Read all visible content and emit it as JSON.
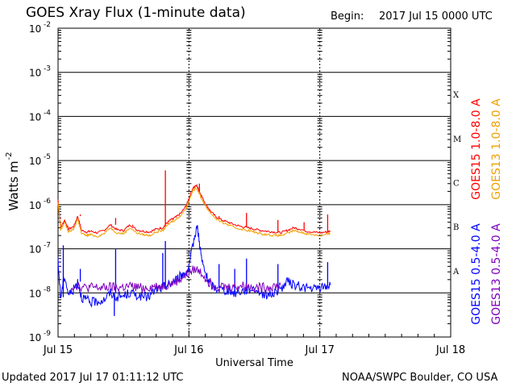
{
  "chart_data": {
    "type": "line",
    "title": "GOES Xray Flux (1-minute data)",
    "begin_label": "Begin:",
    "begin_value": "2017 Jul 15 0000 UTC",
    "ylabel": "Watts m",
    "ylabel_exponent": "-2",
    "xlabel": "Universal Time",
    "yscale": "log",
    "ylim_exponents": [
      -9,
      -2
    ],
    "y_tick_exponents": [
      -9,
      -8,
      -7,
      -6,
      -5,
      -4,
      -3,
      -2
    ],
    "y_tick_base": "10",
    "xlim_days": [
      0,
      3
    ],
    "x_ticks": [
      {
        "day": 0,
        "label": "Jul 15"
      },
      {
        "day": 1,
        "label": "Jul 16"
      },
      {
        "day": 2,
        "label": "Jul 17"
      },
      {
        "day": 3,
        "label": "Jul 18"
      }
    ],
    "flare_classes": [
      {
        "label": "A",
        "exp": -8
      },
      {
        "label": "B",
        "exp": -7
      },
      {
        "label": "C",
        "exp": -6
      },
      {
        "label": "M",
        "exp": -5
      },
      {
        "label": "X",
        "exp": -4
      }
    ],
    "series": [
      {
        "name": "GOES15 1.0-8.0 A",
        "color": "#ff0000",
        "x": [
          0.0,
          0.02,
          0.05,
          0.08,
          0.12,
          0.15,
          0.18,
          0.22,
          0.25,
          0.3,
          0.35,
          0.4,
          0.45,
          0.5,
          0.55,
          0.6,
          0.65,
          0.7,
          0.75,
          0.8,
          0.83,
          0.86,
          0.9,
          0.94,
          0.98,
          1.0,
          1.03,
          1.06,
          1.08,
          1.1,
          1.13,
          1.16,
          1.2,
          1.25,
          1.3,
          1.35,
          1.4,
          1.45,
          1.5,
          1.55,
          1.6,
          1.65,
          1.7,
          1.75,
          1.8,
          1.85,
          1.9,
          1.95,
          2.0,
          2.05,
          2.08
        ],
        "y": [
          1.3e-06,
          3e-07,
          4.5e-07,
          2.8e-07,
          3.2e-07,
          5.5e-07,
          2.6e-07,
          2.4e-07,
          2.5e-07,
          2.3e-07,
          2.6e-07,
          3.5e-07,
          2.7e-07,
          2.6e-07,
          3.5e-07,
          2.7e-07,
          2.5e-07,
          2.4e-07,
          2.8e-07,
          3e-07,
          3.8e-07,
          4.5e-07,
          5.2e-07,
          6.5e-07,
          9.5e-07,
          1.4e-06,
          2.4e-06,
          2.7e-06,
          2e-06,
          1.5e-06,
          1e-06,
          7.5e-07,
          5.5e-07,
          4.5e-07,
          4e-07,
          3.5e-07,
          3.2e-07,
          3e-07,
          2.8e-07,
          2.6e-07,
          2.5e-07,
          2.4e-07,
          2.3e-07,
          2.6e-07,
          3e-07,
          2.8e-07,
          2.5e-07,
          2.4e-07,
          2.3e-07,
          2.4e-07,
          2.5e-07
        ],
        "spikes": [
          {
            "x": 0.17,
            "y": 6e-07
          },
          {
            "x": 0.44,
            "y": 5e-07
          },
          {
            "x": 0.57,
            "y": 3.2e-07
          },
          {
            "x": 0.82,
            "y": 6e-06
          },
          {
            "x": 0.88,
            "y": 5e-07
          },
          {
            "x": 1.08,
            "y": 3e-06
          },
          {
            "x": 1.23,
            "y": 5e-07
          },
          {
            "x": 1.44,
            "y": 6.5e-07
          },
          {
            "x": 1.68,
            "y": 4.5e-07
          },
          {
            "x": 1.88,
            "y": 4e-07
          },
          {
            "x": 2.06,
            "y": 6e-07
          }
        ]
      },
      {
        "name": "GOES13 1.0-8.0 A",
        "color": "#f0a000",
        "x": [
          0.0,
          0.02,
          0.05,
          0.08,
          0.12,
          0.15,
          0.18,
          0.22,
          0.25,
          0.3,
          0.35,
          0.4,
          0.45,
          0.5,
          0.55,
          0.6,
          0.65,
          0.7,
          0.75,
          0.8,
          0.83,
          0.86,
          0.9,
          0.94,
          0.98,
          1.0,
          1.03,
          1.06,
          1.08,
          1.1,
          1.13,
          1.16,
          1.2,
          1.25,
          1.3,
          1.35,
          1.4,
          1.45,
          1.5,
          1.55,
          1.6,
          1.65,
          1.7,
          1.75,
          1.8,
          1.85,
          1.9,
          1.95,
          2.0,
          2.05,
          2.08
        ],
        "y": [
          1.1e-06,
          2.6e-07,
          4e-07,
          2.4e-07,
          2.8e-07,
          4.8e-07,
          2.2e-07,
          2e-07,
          2.1e-07,
          1.9e-07,
          2.2e-07,
          3e-07,
          2.3e-07,
          2.2e-07,
          3e-07,
          2.3e-07,
          2.1e-07,
          2e-07,
          2.4e-07,
          2.6e-07,
          3.3e-07,
          4e-07,
          4.6e-07,
          5.8e-07,
          8.5e-07,
          1.2e-06,
          2.1e-06,
          2.4e-06,
          1.8e-06,
          1.3e-06,
          9e-07,
          6.8e-07,
          5e-07,
          4e-07,
          3.5e-07,
          3e-07,
          2.8e-07,
          2.6e-07,
          2.4e-07,
          2.2e-07,
          2.1e-07,
          2e-07,
          2e-07,
          2.2e-07,
          2.6e-07,
          2.4e-07,
          2.2e-07,
          2.1e-07,
          2e-07,
          2.1e-07,
          2.2e-07
        ],
        "spikes": []
      },
      {
        "name": "GOES15 0.5-4.0 A",
        "color": "#0000ff",
        "x": [
          0.0,
          0.02,
          0.05,
          0.08,
          0.12,
          0.15,
          0.18,
          0.22,
          0.25,
          0.3,
          0.35,
          0.4,
          0.45,
          0.5,
          0.55,
          0.6,
          0.65,
          0.7,
          0.75,
          0.8,
          0.83,
          0.86,
          0.9,
          0.94,
          0.98,
          1.0,
          1.03,
          1.06,
          1.08,
          1.1,
          1.13,
          1.16,
          1.2,
          1.25,
          1.3,
          1.35,
          1.4,
          1.45,
          1.5,
          1.55,
          1.6,
          1.65,
          1.7,
          1.75,
          1.8,
          1.85,
          1.9,
          1.95,
          2.0,
          2.05,
          2.08
        ],
        "y": [
          5e-08,
          8e-09,
          2.5e-08,
          9e-09,
          1.2e-08,
          1.8e-08,
          8e-09,
          7e-09,
          6e-09,
          6.5e-09,
          7e-09,
          1e-08,
          8e-09,
          8.5e-09,
          1e-08,
          9e-09,
          8e-09,
          8.5e-09,
          1.2e-08,
          1.3e-08,
          1.5e-08,
          1.6e-08,
          2e-08,
          2.5e-08,
          3e-08,
          3.5e-08,
          1.2e-07,
          3.5e-07,
          1.5e-07,
          5e-08,
          2.5e-08,
          1.6e-08,
          1.3e-08,
          1.2e-08,
          1.1e-08,
          1e-08,
          1.1e-08,
          1.2e-08,
          1.3e-08,
          1e-08,
          9e-09,
          1e-08,
          1.2e-08,
          1.8e-08,
          1.5e-08,
          1.4e-08,
          1.3e-08,
          1.2e-08,
          1.3e-08,
          1.4e-08,
          1.5e-08
        ],
        "spikes": [
          {
            "x": 0.04,
            "y": 1.2e-07
          },
          {
            "x": 0.17,
            "y": 3.5e-08
          },
          {
            "x": 0.44,
            "y": 1e-07
          },
          {
            "x": 0.43,
            "y": 3e-09
          },
          {
            "x": 0.8,
            "y": 8e-08
          },
          {
            "x": 0.82,
            "y": 1.5e-07
          },
          {
            "x": 1.23,
            "y": 4.5e-08
          },
          {
            "x": 1.35,
            "y": 3.5e-08
          },
          {
            "x": 1.44,
            "y": 6e-08
          },
          {
            "x": 1.68,
            "y": 4.5e-08
          },
          {
            "x": 2.06,
            "y": 5e-08
          }
        ]
      },
      {
        "name": "GOES13 0.5-4.0 A",
        "color": "#7f00bf",
        "x": [
          0.1,
          0.15,
          0.2,
          0.25,
          0.3,
          0.35,
          0.4,
          0.45,
          0.5,
          0.55,
          0.6,
          0.65,
          0.7,
          0.75,
          0.8,
          0.85,
          0.9,
          0.95,
          1.0,
          1.05,
          1.1,
          1.15,
          1.2,
          1.25,
          1.3,
          1.35,
          1.4,
          1.45,
          1.5,
          1.55,
          1.6,
          1.65,
          1.7
        ],
        "y": [
          1.4e-08,
          1.5e-08,
          1.3e-08,
          1.35e-08,
          1.3e-08,
          1.3e-08,
          1.35e-08,
          1.3e-08,
          1.35e-08,
          1.4e-08,
          1.35e-08,
          1.3e-08,
          1.35e-08,
          1.4e-08,
          1.45e-08,
          1.6e-08,
          1.8e-08,
          2.2e-08,
          2.8e-08,
          3.5e-08,
          2.8e-08,
          1.8e-08,
          1.5e-08,
          1.4e-08,
          1.35e-08,
          1.4e-08,
          1.45e-08,
          1.4e-08,
          1.35e-08,
          1.3e-08,
          1.35e-08,
          1.4e-08,
          1.5e-08
        ],
        "spikes": []
      }
    ],
    "legend_right": [
      {
        "text": "GOES15 1.0-8.0 A",
        "color": "#ff0000"
      },
      {
        "text": "GOES13 1.0-8.0 A",
        "color": "#f0a000"
      },
      {
        "text": "GOES15 0.5-4.0 A",
        "color": "#0000ff"
      },
      {
        "text": "GOES13 0.5-4.0 A",
        "color": "#7f00bf"
      }
    ]
  },
  "footer": {
    "updated": "Updated 2017 Jul 17 01:11:12 UTC",
    "source": "NOAA/SWPC Boulder, CO USA"
  }
}
